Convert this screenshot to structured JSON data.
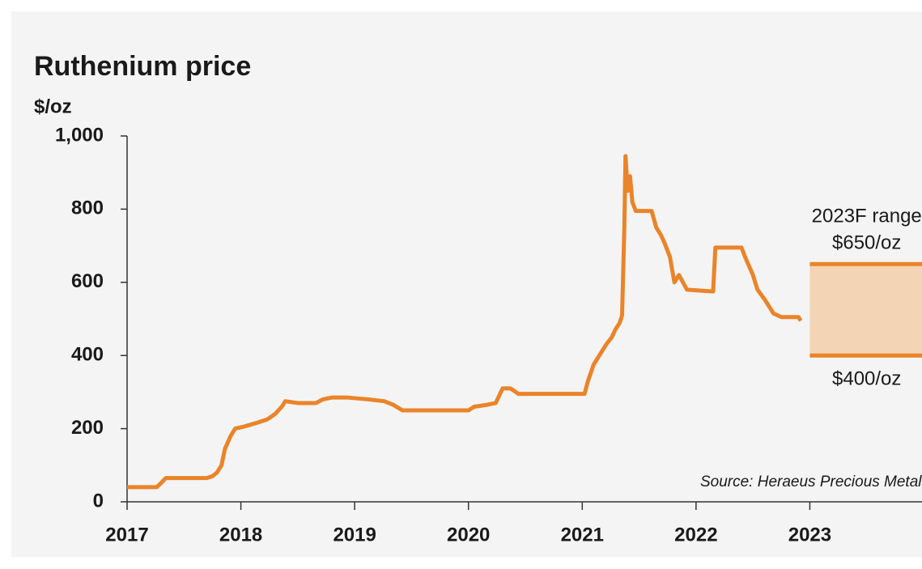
{
  "chart_data": {
    "type": "line",
    "title": "Ruthenium price",
    "y_label": "$/oz",
    "color": "#ea8429",
    "x": [
      2017.0,
      2017.26,
      2017.31,
      2017.34,
      2017.7,
      2017.75,
      2017.79,
      2017.83,
      2017.86,
      2017.91,
      2017.95,
      2018.02,
      2018.13,
      2018.23,
      2018.3,
      2018.36,
      2018.39,
      2018.5,
      2018.66,
      2018.72,
      2018.8,
      2018.94,
      2019.12,
      2019.26,
      2019.34,
      2019.42,
      2019.8,
      2020.0,
      2020.05,
      2020.16,
      2020.24,
      2020.3,
      2020.37,
      2020.44,
      2020.87,
      2021.02,
      2021.05,
      2021.1,
      2021.15,
      2021.21,
      2021.26,
      2021.29,
      2021.33,
      2021.35,
      2021.37,
      2021.38,
      2021.4,
      2021.42,
      2021.44,
      2021.47,
      2021.61,
      2021.65,
      2021.69,
      2021.72,
      2021.77,
      2021.81,
      2021.85,
      2021.92,
      2022.15,
      2022.17,
      2022.4,
      2022.43,
      2022.5,
      2022.54,
      2022.61,
      2022.68,
      2022.75,
      2022.9,
      2022.92
    ],
    "values": [
      40,
      40,
      55,
      65,
      65,
      70,
      80,
      100,
      145,
      180,
      200,
      205,
      215,
      225,
      240,
      260,
      275,
      270,
      270,
      280,
      285,
      285,
      280,
      275,
      265,
      250,
      250,
      250,
      260,
      265,
      270,
      310,
      310,
      295,
      295,
      295,
      330,
      375,
      400,
      430,
      450,
      470,
      490,
      510,
      750,
      945,
      850,
      890,
      820,
      795,
      795,
      750,
      730,
      710,
      670,
      600,
      620,
      580,
      575,
      695,
      695,
      670,
      620,
      580,
      550,
      515,
      505,
      505,
      495
    ],
    "xlim": [
      2017,
      2024
    ],
    "xticks": [
      2017,
      2018,
      2019,
      2020,
      2021,
      2022,
      2023
    ],
    "ylim": [
      0,
      1000
    ],
    "yticks": [
      0,
      200,
      400,
      600,
      800,
      {
        "value": 1000,
        "label": "1,000"
      }
    ],
    "forecast": {
      "label": "2023F range",
      "high": 650,
      "low": 400,
      "high_label": "$650/oz",
      "low_label": "$400/oz",
      "color": "#f3d4b4"
    },
    "source": "Source: Heraeus Precious Metals"
  }
}
